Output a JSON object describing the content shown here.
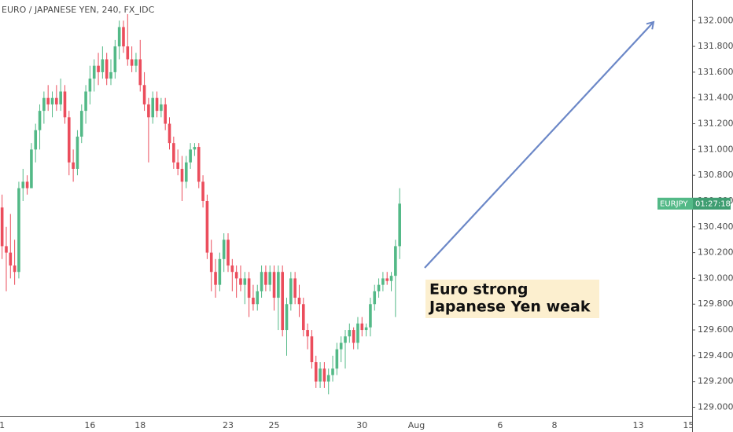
{
  "chart_data": {
    "type": "candlestick",
    "title": "EURO / JAPANESE YEN, 240, FX_IDC",
    "annotation": [
      "Euro strong",
      "Japanese Yen weak"
    ],
    "price_label": {
      "symbol": "EURJPY",
      "countdown": "01:27:18"
    },
    "up_color": "#53b987",
    "down_color": "#eb4d5c",
    "categories": [
      "1",
      null,
      null,
      null,
      null,
      null,
      null,
      null,
      null,
      null,
      null,
      null,
      null,
      null,
      null,
      null,
      null,
      null,
      null,
      null,
      null,
      "16",
      null,
      null,
      null,
      null,
      null,
      null,
      null,
      null,
      null,
      null,
      null,
      "18",
      null,
      null,
      null,
      null,
      null,
      null,
      null,
      null,
      null,
      null,
      null,
      null,
      null,
      null,
      null,
      null,
      null,
      null,
      null,
      null,
      "23",
      null,
      null,
      null,
      null,
      null,
      null,
      null,
      null,
      null,
      null,
      "25",
      null,
      null,
      null,
      null,
      null,
      null,
      null,
      null,
      null,
      null,
      null,
      null,
      null,
      null,
      null,
      null,
      null,
      null,
      null,
      null,
      "30",
      null,
      null,
      null,
      null,
      null,
      null,
      null,
      null,
      null,
      null,
      null,
      null,
      "Aug",
      null,
      null,
      null,
      null,
      null,
      null,
      null,
      null,
      null,
      null,
      null,
      null,
      null,
      null,
      null,
      null,
      null,
      null,
      null,
      "6",
      null,
      null,
      null,
      null,
      null,
      null,
      null,
      null,
      null,
      null,
      null,
      null,
      "8",
      null,
      null,
      null,
      null,
      null,
      null,
      null,
      null,
      null,
      null,
      null,
      null,
      null,
      null,
      null,
      null,
      null,
      null,
      null,
      "13",
      null,
      null,
      null,
      null,
      null,
      null,
      null,
      null,
      null,
      null,
      null,
      "15"
    ],
    "open": [
      130.55,
      130.25,
      130.2,
      130.1,
      130.05,
      130.7,
      130.75,
      130.7,
      131.0,
      131.15,
      131.3,
      131.4,
      131.35,
      131.4,
      131.35,
      131.45,
      131.25,
      130.9,
      130.85,
      131.1,
      131.3,
      131.45,
      131.55,
      131.65,
      131.6,
      131.7,
      131.55,
      131.6,
      131.8,
      131.95,
      131.8,
      131.7,
      131.65,
      131.7,
      131.5,
      131.35,
      131.25,
      131.4,
      131.3,
      131.35,
      131.2,
      131.05,
      130.9,
      130.85,
      130.75,
      130.9,
      131.0,
      131.02,
      130.75,
      130.6,
      130.2,
      130.05,
      129.95,
      130.15,
      130.3,
      130.1,
      130.05,
      130.0,
      129.95,
      130.0,
      129.85,
      129.8,
      129.9,
      130.05,
      129.95,
      130.05,
      129.85,
      130.05,
      129.6,
      129.8,
      130.0,
      129.85,
      129.8,
      129.6,
      129.55,
      129.35,
      129.2,
      129.3,
      129.2,
      129.25,
      129.3,
      129.45,
      129.5,
      129.55,
      129.6,
      129.5,
      129.65,
      129.6,
      129.62,
      129.8,
      129.9,
      129.95,
      130.0,
      129.98,
      130.02,
      130.25,
      null,
      null,
      null,
      null,
      null,
      null,
      null,
      null,
      null,
      null,
      null,
      null,
      null,
      null,
      null,
      null,
      null,
      null,
      null,
      null,
      null,
      null,
      null,
      null,
      null,
      null,
      null,
      null,
      null,
      null,
      null,
      null,
      null,
      null,
      null,
      null,
      null,
      null,
      null,
      null,
      null,
      null,
      null,
      null,
      null,
      null,
      null,
      null,
      null,
      null,
      null,
      null,
      null,
      null,
      null,
      null,
      null,
      null,
      null,
      null,
      null,
      null,
      null,
      null,
      null,
      null,
      null,
      null,
      null
    ],
    "high": [
      130.65,
      130.4,
      130.5,
      130.3,
      130.75,
      130.85,
      130.8,
      131.05,
      131.2,
      131.35,
      131.45,
      131.5,
      131.45,
      131.5,
      131.55,
      131.5,
      131.3,
      131.0,
      131.15,
      131.35,
      131.5,
      131.65,
      131.7,
      131.75,
      131.8,
      131.75,
      131.7,
      131.85,
      132.0,
      132.0,
      132.05,
      131.8,
      131.75,
      131.85,
      131.6,
      131.4,
      131.45,
      131.45,
      131.4,
      131.4,
      131.25,
      131.1,
      131.0,
      130.95,
      130.95,
      131.05,
      131.05,
      131.05,
      130.8,
      130.65,
      130.3,
      130.15,
      130.2,
      130.35,
      130.35,
      130.15,
      130.1,
      130.1,
      130.05,
      130.05,
      129.95,
      129.95,
      130.1,
      130.1,
      130.1,
      130.1,
      130.1,
      130.1,
      129.85,
      130.05,
      130.05,
      129.95,
      129.85,
      129.65,
      129.6,
      129.4,
      129.35,
      129.35,
      129.3,
      129.4,
      129.5,
      129.55,
      129.6,
      129.65,
      129.62,
      129.7,
      129.7,
      129.65,
      129.85,
      129.95,
      130.0,
      130.05,
      130.05,
      130.05,
      130.3,
      130.7,
      null,
      null,
      null,
      null,
      null,
      null,
      null,
      null,
      null,
      null,
      null,
      null,
      null,
      null,
      null,
      null,
      null,
      null,
      null,
      null,
      null,
      null,
      null,
      null,
      null,
      null,
      null,
      null,
      null,
      null,
      null,
      null,
      null,
      null,
      null,
      null,
      null,
      null,
      null,
      null,
      null,
      null,
      null,
      null,
      null,
      null,
      null,
      null,
      null,
      null,
      null,
      null,
      null,
      null,
      null,
      null,
      null,
      null,
      null,
      null,
      null,
      null,
      null,
      null,
      null,
      null,
      null,
      null,
      null
    ],
    "low": [
      130.15,
      129.9,
      130.0,
      129.95,
      130.0,
      130.6,
      130.65,
      130.7,
      130.9,
      131.0,
      131.2,
      131.3,
      131.25,
      131.3,
      131.3,
      131.2,
      130.8,
      130.75,
      130.8,
      131.05,
      131.2,
      131.35,
      131.45,
      131.5,
      131.55,
      131.5,
      131.5,
      131.55,
      131.7,
      131.75,
      131.65,
      131.6,
      131.6,
      131.45,
      131.3,
      130.9,
      131.2,
      131.25,
      131.25,
      131.15,
      131.0,
      130.85,
      130.8,
      130.6,
      130.7,
      130.85,
      130.95,
      130.7,
      130.55,
      130.15,
      129.9,
      129.85,
      129.9,
      130.05,
      130.05,
      129.9,
      129.85,
      129.9,
      129.8,
      129.7,
      129.75,
      129.75,
      129.85,
      129.9,
      129.9,
      129.75,
      129.6,
      129.55,
      129.4,
      129.75,
      129.8,
      129.7,
      129.55,
      129.45,
      129.3,
      129.15,
      129.15,
      129.15,
      129.1,
      129.2,
      129.25,
      129.35,
      129.3,
      129.5,
      129.45,
      129.45,
      129.55,
      129.55,
      129.55,
      129.75,
      129.85,
      129.9,
      129.95,
      129.9,
      129.7,
      130.15,
      null,
      null,
      null,
      null,
      null,
      null,
      null,
      null,
      null,
      null,
      null,
      null,
      null,
      null,
      null,
      null,
      null,
      null,
      null,
      null,
      null,
      null,
      null,
      null,
      null,
      null,
      null,
      null,
      null,
      null,
      null,
      null,
      null,
      null,
      null,
      null,
      null,
      null,
      null,
      null,
      null,
      null,
      null,
      null,
      null,
      null,
      null,
      null,
      null,
      null,
      null,
      null,
      null,
      null,
      null,
      null,
      null,
      null,
      null,
      null,
      null,
      null,
      null,
      null,
      null,
      null,
      null,
      null,
      null
    ],
    "close": [
      130.25,
      130.2,
      130.1,
      130.05,
      130.7,
      130.75,
      130.7,
      131.0,
      131.15,
      131.3,
      131.4,
      131.35,
      131.4,
      131.35,
      131.45,
      131.25,
      130.9,
      130.85,
      131.1,
      131.3,
      131.45,
      131.55,
      131.65,
      131.6,
      131.7,
      131.55,
      131.6,
      131.8,
      131.95,
      131.8,
      131.7,
      131.65,
      131.7,
      131.5,
      131.35,
      131.25,
      131.4,
      131.3,
      131.35,
      131.2,
      131.05,
      130.9,
      130.85,
      130.75,
      130.9,
      131.0,
      131.02,
      130.75,
      130.6,
      130.2,
      130.05,
      129.95,
      130.15,
      130.3,
      130.1,
      130.05,
      130.0,
      129.95,
      130.0,
      129.85,
      129.8,
      129.9,
      130.05,
      129.95,
      130.05,
      129.85,
      130.05,
      129.6,
      129.8,
      130.0,
      129.85,
      129.8,
      129.6,
      129.55,
      129.35,
      129.2,
      129.3,
      129.2,
      129.25,
      129.3,
      129.45,
      129.5,
      129.55,
      129.6,
      129.5,
      129.65,
      129.6,
      129.62,
      129.8,
      129.9,
      129.95,
      130.0,
      129.98,
      130.02,
      130.25,
      130.58,
      null,
      null,
      null,
      null,
      null,
      null,
      null,
      null,
      null,
      null,
      null,
      null,
      null,
      null,
      null,
      null,
      null,
      null,
      null,
      null,
      null,
      null,
      null,
      null,
      null,
      null,
      null,
      null,
      null,
      null,
      null,
      null,
      null,
      null,
      null,
      null,
      null,
      null,
      null,
      null,
      null,
      null,
      null,
      null,
      null,
      null,
      null,
      null,
      null,
      null,
      null,
      null,
      null,
      null,
      null,
      null,
      null,
      null,
      null,
      null,
      null,
      null,
      null,
      null,
      null,
      null,
      null,
      null,
      null
    ],
    "ylim": [
      128.93,
      132.16
    ],
    "yticks": [
      {
        "value": 129.0,
        "label": "129.0000"
      },
      {
        "value": 129.2,
        "label": "129.2000"
      },
      {
        "value": 129.4,
        "label": "129.4000"
      },
      {
        "value": 129.6,
        "label": "129.6000"
      },
      {
        "value": 129.8,
        "label": "129.8000"
      },
      {
        "value": 130.0,
        "label": "130.0000"
      },
      {
        "value": 130.2,
        "label": "130.2000"
      },
      {
        "value": 130.4,
        "label": "130.4000"
      },
      {
        "value": 130.6,
        "label": "130.6000"
      },
      {
        "value": 130.8,
        "label": "130.8000"
      },
      {
        "value": 131.0,
        "label": "131.0000"
      },
      {
        "value": 131.2,
        "label": "131.2000"
      },
      {
        "value": 131.4,
        "label": "131.4000"
      },
      {
        "value": 131.6,
        "label": "131.6000"
      },
      {
        "value": 131.8,
        "label": "131.8000"
      },
      {
        "value": 132.0,
        "label": "132.0000"
      }
    ]
  }
}
